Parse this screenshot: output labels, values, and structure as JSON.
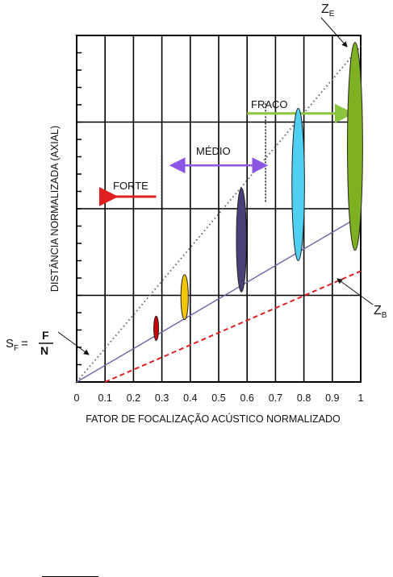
{
  "chart_data": {
    "type": "scatter",
    "xlabel": "FATOR DE FOCALIZAÇÃO ACÚSTICO NORMALIZADO",
    "ylabel": "DISTÂNCIA NORMALIZADA (AXIAL)",
    "xlim": [
      0,
      1
    ],
    "ylim": [
      0,
      1
    ],
    "x_ticks": [
      "0",
      "0.1",
      "0.2",
      "0.3",
      "0.4",
      "0.5",
      "0.6",
      "0.7",
      "0.8",
      "0.9",
      "1"
    ],
    "grid": true,
    "lines": [
      {
        "label": "Z_E",
        "style": "dotted",
        "color": "#666666",
        "x": [
          0,
          1
        ],
        "y": [
          0,
          0.97
        ]
      },
      {
        "label": "",
        "style": "solid",
        "color": "#6c64a8",
        "x": [
          0,
          1
        ],
        "y": [
          0,
          0.48
        ]
      },
      {
        "label": "Z_B",
        "style": "dashed",
        "color": "#e02020",
        "x": [
          0.1,
          1
        ],
        "y": [
          0,
          0.32
        ]
      }
    ],
    "focal_zones": [
      {
        "x": 0.28,
        "y_start": 0.12,
        "y_end": 0.19,
        "color": "#cc0000"
      },
      {
        "x": 0.38,
        "y_start": 0.18,
        "y_end": 0.31,
        "color": "#f3c600"
      },
      {
        "x": 0.58,
        "y_start": 0.26,
        "y_end": 0.56,
        "color": "#4b3f7a"
      },
      {
        "x": 0.78,
        "y_start": 0.35,
        "y_end": 0.79,
        "color": "#4fd0f2"
      },
      {
        "x": 0.98,
        "y_start": 0.38,
        "y_end": 0.98,
        "color": "#7eb022"
      }
    ],
    "regions": [
      {
        "label": "FORTE",
        "x_range": [
          0.1,
          0.33
        ],
        "color": "#e02020"
      },
      {
        "label": "MÉDIO",
        "x_range": [
          0.33,
          0.67
        ],
        "color": "#8a56e6"
      },
      {
        "label": "FRACO",
        "x_range": [
          0.67,
          1
        ],
        "color": "#8bc53f"
      }
    ],
    "annotations": {
      "ze_label": "Z",
      "ze_sub": "E",
      "zb_label": "Z",
      "zb_sub": "B",
      "sf_label": "S",
      "sf_sub": "F",
      "sf_eq": "=",
      "sf_num": "F",
      "sf_den": "N"
    }
  }
}
